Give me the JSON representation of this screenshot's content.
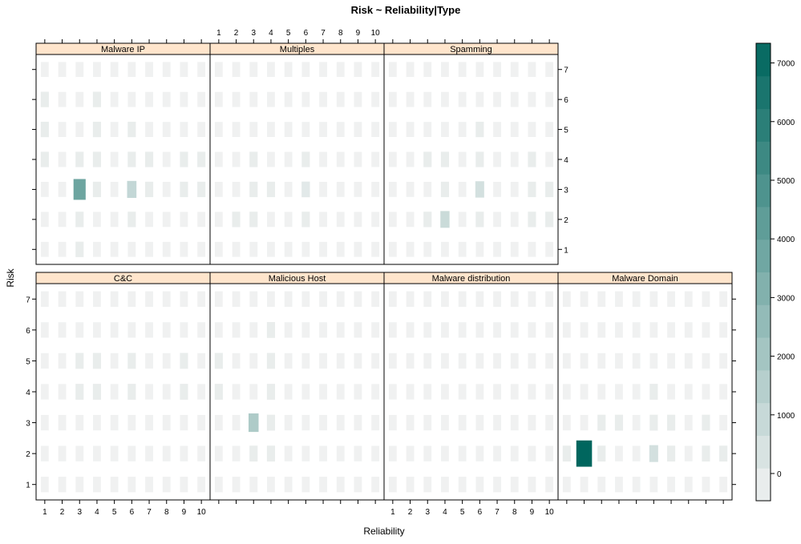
{
  "chart_data": {
    "type": "heatmap",
    "title": "Risk ~ Reliability|Type",
    "xlabel": "Reliability",
    "ylabel": "Risk",
    "x_values": [
      1,
      2,
      3,
      4,
      5,
      6,
      7,
      8,
      9,
      10
    ],
    "y_values": [
      1,
      2,
      3,
      4,
      5,
      6,
      7
    ],
    "x_tick_labels": [
      "1",
      "2",
      "3",
      "4",
      "5",
      "6",
      "7",
      "8",
      "9",
      "10"
    ],
    "y_tick_labels": [
      "1",
      "2",
      "3",
      "4",
      "5",
      "6",
      "7"
    ],
    "zlim": [
      0,
      7800
    ],
    "colorbar_ticks": [
      0,
      1000,
      2000,
      3000,
      4000,
      5000,
      6000,
      7000
    ],
    "colorbar_tick_labels": [
      "0",
      "1000",
      "2000",
      "3000",
      "4000",
      "5000",
      "6000",
      "7000"
    ],
    "color_low": "#f2f2f2",
    "color_high": "#00665e",
    "strip_color": "#ffe5cc",
    "panels": [
      {
        "name": "Malware IP",
        "values": [
          [
            50,
            50,
            300,
            50,
            50,
            50,
            50,
            50,
            50,
            50
          ],
          [
            50,
            50,
            300,
            50,
            50,
            300,
            50,
            50,
            50,
            50
          ],
          [
            50,
            50,
            4300,
            300,
            50,
            1500,
            300,
            50,
            300,
            300
          ],
          [
            300,
            50,
            300,
            300,
            50,
            300,
            300,
            50,
            300,
            300
          ],
          [
            300,
            50,
            50,
            300,
            50,
            300,
            50,
            50,
            50,
            50
          ],
          [
            300,
            50,
            50,
            300,
            50,
            50,
            50,
            50,
            50,
            50
          ],
          [
            50,
            50,
            50,
            50,
            50,
            50,
            50,
            50,
            50,
            50
          ]
        ]
      },
      {
        "name": "Multiples",
        "values": [
          [
            50,
            50,
            50,
            50,
            50,
            50,
            50,
            50,
            50,
            50
          ],
          [
            50,
            300,
            300,
            50,
            50,
            300,
            50,
            50,
            50,
            50
          ],
          [
            50,
            50,
            300,
            300,
            50,
            500,
            50,
            50,
            50,
            50
          ],
          [
            50,
            50,
            300,
            50,
            50,
            300,
            50,
            50,
            50,
            50
          ],
          [
            50,
            50,
            50,
            50,
            50,
            50,
            50,
            50,
            50,
            50
          ],
          [
            50,
            50,
            50,
            50,
            50,
            50,
            50,
            50,
            50,
            50
          ],
          [
            50,
            50,
            50,
            50,
            50,
            50,
            50,
            50,
            50,
            50
          ]
        ]
      },
      {
        "name": "Spamming",
        "values": [
          [
            50,
            50,
            50,
            50,
            50,
            50,
            50,
            50,
            50,
            50
          ],
          [
            50,
            50,
            300,
            1300,
            50,
            300,
            50,
            50,
            300,
            300
          ],
          [
            50,
            50,
            50,
            300,
            50,
            1000,
            50,
            50,
            300,
            300
          ],
          [
            50,
            50,
            300,
            300,
            50,
            300,
            50,
            50,
            300,
            50
          ],
          [
            50,
            50,
            50,
            50,
            50,
            300,
            50,
            50,
            50,
            50
          ],
          [
            50,
            50,
            50,
            50,
            50,
            50,
            50,
            50,
            50,
            50
          ],
          [
            50,
            50,
            50,
            50,
            50,
            50,
            50,
            50,
            50,
            50
          ]
        ]
      },
      {
        "name": "C&C",
        "values": [
          [
            50,
            50,
            50,
            50,
            50,
            50,
            50,
            50,
            50,
            50
          ],
          [
            50,
            50,
            50,
            50,
            50,
            50,
            50,
            50,
            50,
            50
          ],
          [
            50,
            50,
            50,
            50,
            50,
            50,
            50,
            50,
            50,
            50
          ],
          [
            50,
            50,
            300,
            300,
            50,
            300,
            50,
            50,
            300,
            50
          ],
          [
            50,
            50,
            300,
            300,
            50,
            300,
            50,
            50,
            300,
            50
          ],
          [
            50,
            50,
            50,
            50,
            50,
            50,
            50,
            50,
            50,
            50
          ],
          [
            50,
            50,
            50,
            50,
            50,
            50,
            50,
            50,
            50,
            50
          ]
        ]
      },
      {
        "name": "Malicious Host",
        "values": [
          [
            50,
            50,
            50,
            50,
            50,
            50,
            50,
            50,
            50,
            50
          ],
          [
            50,
            50,
            300,
            300,
            50,
            50,
            50,
            50,
            50,
            50
          ],
          [
            50,
            50,
            2200,
            300,
            50,
            50,
            50,
            50,
            50,
            50
          ],
          [
            300,
            50,
            50,
            300,
            50,
            50,
            50,
            50,
            50,
            50
          ],
          [
            300,
            50,
            50,
            300,
            50,
            50,
            50,
            50,
            50,
            50
          ],
          [
            50,
            50,
            50,
            300,
            50,
            50,
            50,
            50,
            50,
            50
          ],
          [
            50,
            50,
            50,
            50,
            50,
            50,
            50,
            50,
            50,
            50
          ]
        ]
      },
      {
        "name": "Malware distribution",
        "values": [
          [
            50,
            50,
            50,
            50,
            50,
            50,
            50,
            50,
            50,
            50
          ],
          [
            50,
            50,
            50,
            50,
            50,
            50,
            50,
            50,
            50,
            50
          ],
          [
            50,
            50,
            50,
            50,
            50,
            50,
            50,
            50,
            50,
            50
          ],
          [
            50,
            50,
            50,
            50,
            50,
            50,
            50,
            50,
            50,
            50
          ],
          [
            50,
            50,
            50,
            50,
            50,
            50,
            50,
            50,
            50,
            50
          ],
          [
            50,
            50,
            50,
            50,
            50,
            50,
            50,
            50,
            50,
            50
          ],
          [
            50,
            50,
            50,
            50,
            50,
            50,
            50,
            50,
            50,
            50
          ]
        ]
      },
      {
        "name": "Malware Domain",
        "values": [
          [
            50,
            50,
            50,
            50,
            50,
            50,
            50,
            50,
            50,
            50
          ],
          [
            300,
            7800,
            300,
            50,
            50,
            1000,
            300,
            50,
            300,
            300
          ],
          [
            50,
            50,
            300,
            300,
            50,
            300,
            300,
            50,
            300,
            50
          ],
          [
            50,
            50,
            50,
            50,
            50,
            300,
            50,
            50,
            50,
            50
          ],
          [
            50,
            50,
            50,
            50,
            50,
            50,
            50,
            50,
            50,
            50
          ],
          [
            50,
            50,
            50,
            50,
            50,
            50,
            50,
            50,
            50,
            50
          ],
          [
            50,
            50,
            50,
            50,
            50,
            50,
            50,
            50,
            50,
            50
          ]
        ]
      }
    ]
  }
}
